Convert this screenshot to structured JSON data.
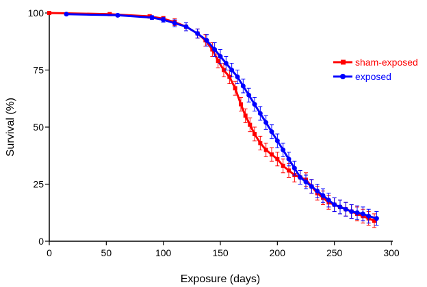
{
  "chart_data": {
    "type": "line",
    "title": "",
    "xlabel": "Exposure (days)",
    "ylabel": "Survival (%)",
    "xlim": [
      0,
      300
    ],
    "ylim": [
      0,
      100
    ],
    "xticks": [
      0,
      50,
      100,
      150,
      200,
      250,
      300
    ],
    "yticks": [
      0,
      25,
      50,
      75,
      100
    ],
    "grid": false,
    "legend_position": "right",
    "error_bars": true,
    "series": [
      {
        "name": "sham-exposed",
        "color": "#ff0000",
        "marker": "square",
        "points": [
          {
            "x": 0,
            "y": 100,
            "err": 0.4
          },
          {
            "x": 53,
            "y": 99.5,
            "err": 0.6
          },
          {
            "x": 88,
            "y": 98.5,
            "err": 0.8
          },
          {
            "x": 100,
            "y": 97.5,
            "err": 1.0
          },
          {
            "x": 110,
            "y": 96,
            "err": 1.5
          },
          {
            "x": 120,
            "y": 94,
            "err": 1.8
          },
          {
            "x": 130,
            "y": 91,
            "err": 2.0
          },
          {
            "x": 137,
            "y": 88,
            "err": 2.5
          },
          {
            "x": 143,
            "y": 84,
            "err": 3.0
          },
          {
            "x": 148,
            "y": 79,
            "err": 3.0
          },
          {
            "x": 153,
            "y": 75,
            "err": 3.0
          },
          {
            "x": 158,
            "y": 72,
            "err": 3.0
          },
          {
            "x": 163,
            "y": 67,
            "err": 3.0
          },
          {
            "x": 168,
            "y": 60,
            "err": 3.0
          },
          {
            "x": 172,
            "y": 55,
            "err": 3.0
          },
          {
            "x": 176,
            "y": 51,
            "err": 3.0
          },
          {
            "x": 180,
            "y": 47,
            "err": 3.0
          },
          {
            "x": 185,
            "y": 43,
            "err": 3.0
          },
          {
            "x": 190,
            "y": 40,
            "err": 3.0
          },
          {
            "x": 195,
            "y": 38,
            "err": 3.0
          },
          {
            "x": 200,
            "y": 36,
            "err": 3.0
          },
          {
            "x": 205,
            "y": 33,
            "err": 3.0
          },
          {
            "x": 210,
            "y": 31,
            "err": 3.0
          },
          {
            "x": 215,
            "y": 29,
            "err": 3.0
          },
          {
            "x": 220,
            "y": 28,
            "err": 3.0
          },
          {
            "x": 225,
            "y": 27,
            "err": 3.0
          },
          {
            "x": 230,
            "y": 24,
            "err": 3.0
          },
          {
            "x": 235,
            "y": 21,
            "err": 3.0
          },
          {
            "x": 240,
            "y": 19,
            "err": 3.0
          },
          {
            "x": 245,
            "y": 17,
            "err": 3.0
          },
          {
            "x": 250,
            "y": 16,
            "err": 3.0
          },
          {
            "x": 255,
            "y": 15,
            "err": 3.0
          },
          {
            "x": 260,
            "y": 14,
            "err": 3.0
          },
          {
            "x": 265,
            "y": 13,
            "err": 3.0
          },
          {
            "x": 270,
            "y": 12,
            "err": 3.0
          },
          {
            "x": 275,
            "y": 11,
            "err": 3.0
          },
          {
            "x": 280,
            "y": 10,
            "err": 3.0
          },
          {
            "x": 285,
            "y": 9,
            "err": 3.0
          }
        ]
      },
      {
        "name": "exposed",
        "color": "#0000ff",
        "marker": "circle",
        "points": [
          {
            "x": 15,
            "y": 99.5,
            "err": 0.4
          },
          {
            "x": 60,
            "y": 99,
            "err": 0.6
          },
          {
            "x": 90,
            "y": 98,
            "err": 0.8
          },
          {
            "x": 100,
            "y": 97,
            "err": 1.0
          },
          {
            "x": 110,
            "y": 95.5,
            "err": 1.5
          },
          {
            "x": 120,
            "y": 94,
            "err": 1.8
          },
          {
            "x": 130,
            "y": 91,
            "err": 2.0
          },
          {
            "x": 138,
            "y": 88,
            "err": 2.5
          },
          {
            "x": 145,
            "y": 84,
            "err": 3.0
          },
          {
            "x": 150,
            "y": 81,
            "err": 3.0
          },
          {
            "x": 155,
            "y": 78,
            "err": 3.0
          },
          {
            "x": 160,
            "y": 75,
            "err": 3.0
          },
          {
            "x": 165,
            "y": 72,
            "err": 3.0
          },
          {
            "x": 170,
            "y": 68,
            "err": 3.0
          },
          {
            "x": 175,
            "y": 64,
            "err": 3.0
          },
          {
            "x": 180,
            "y": 60,
            "err": 3.0
          },
          {
            "x": 185,
            "y": 56,
            "err": 3.0
          },
          {
            "x": 190,
            "y": 52,
            "err": 3.0
          },
          {
            "x": 195,
            "y": 48,
            "err": 3.0
          },
          {
            "x": 200,
            "y": 44,
            "err": 3.0
          },
          {
            "x": 205,
            "y": 40,
            "err": 3.0
          },
          {
            "x": 210,
            "y": 36,
            "err": 3.0
          },
          {
            "x": 215,
            "y": 32,
            "err": 3.0
          },
          {
            "x": 220,
            "y": 28,
            "err": 3.0
          },
          {
            "x": 225,
            "y": 26,
            "err": 3.0
          },
          {
            "x": 230,
            "y": 24,
            "err": 3.0
          },
          {
            "x": 235,
            "y": 22,
            "err": 3.0
          },
          {
            "x": 240,
            "y": 20,
            "err": 3.0
          },
          {
            "x": 245,
            "y": 18,
            "err": 3.0
          },
          {
            "x": 250,
            "y": 16,
            "err": 3.0
          },
          {
            "x": 255,
            "y": 15,
            "err": 3.0
          },
          {
            "x": 260,
            "y": 14,
            "err": 3.0
          },
          {
            "x": 265,
            "y": 13,
            "err": 3.0
          },
          {
            "x": 270,
            "y": 12.5,
            "err": 3.0
          },
          {
            "x": 275,
            "y": 12,
            "err": 3.0
          },
          {
            "x": 280,
            "y": 11,
            "err": 3.0
          },
          {
            "x": 287,
            "y": 10,
            "err": 3.0
          }
        ]
      }
    ]
  }
}
